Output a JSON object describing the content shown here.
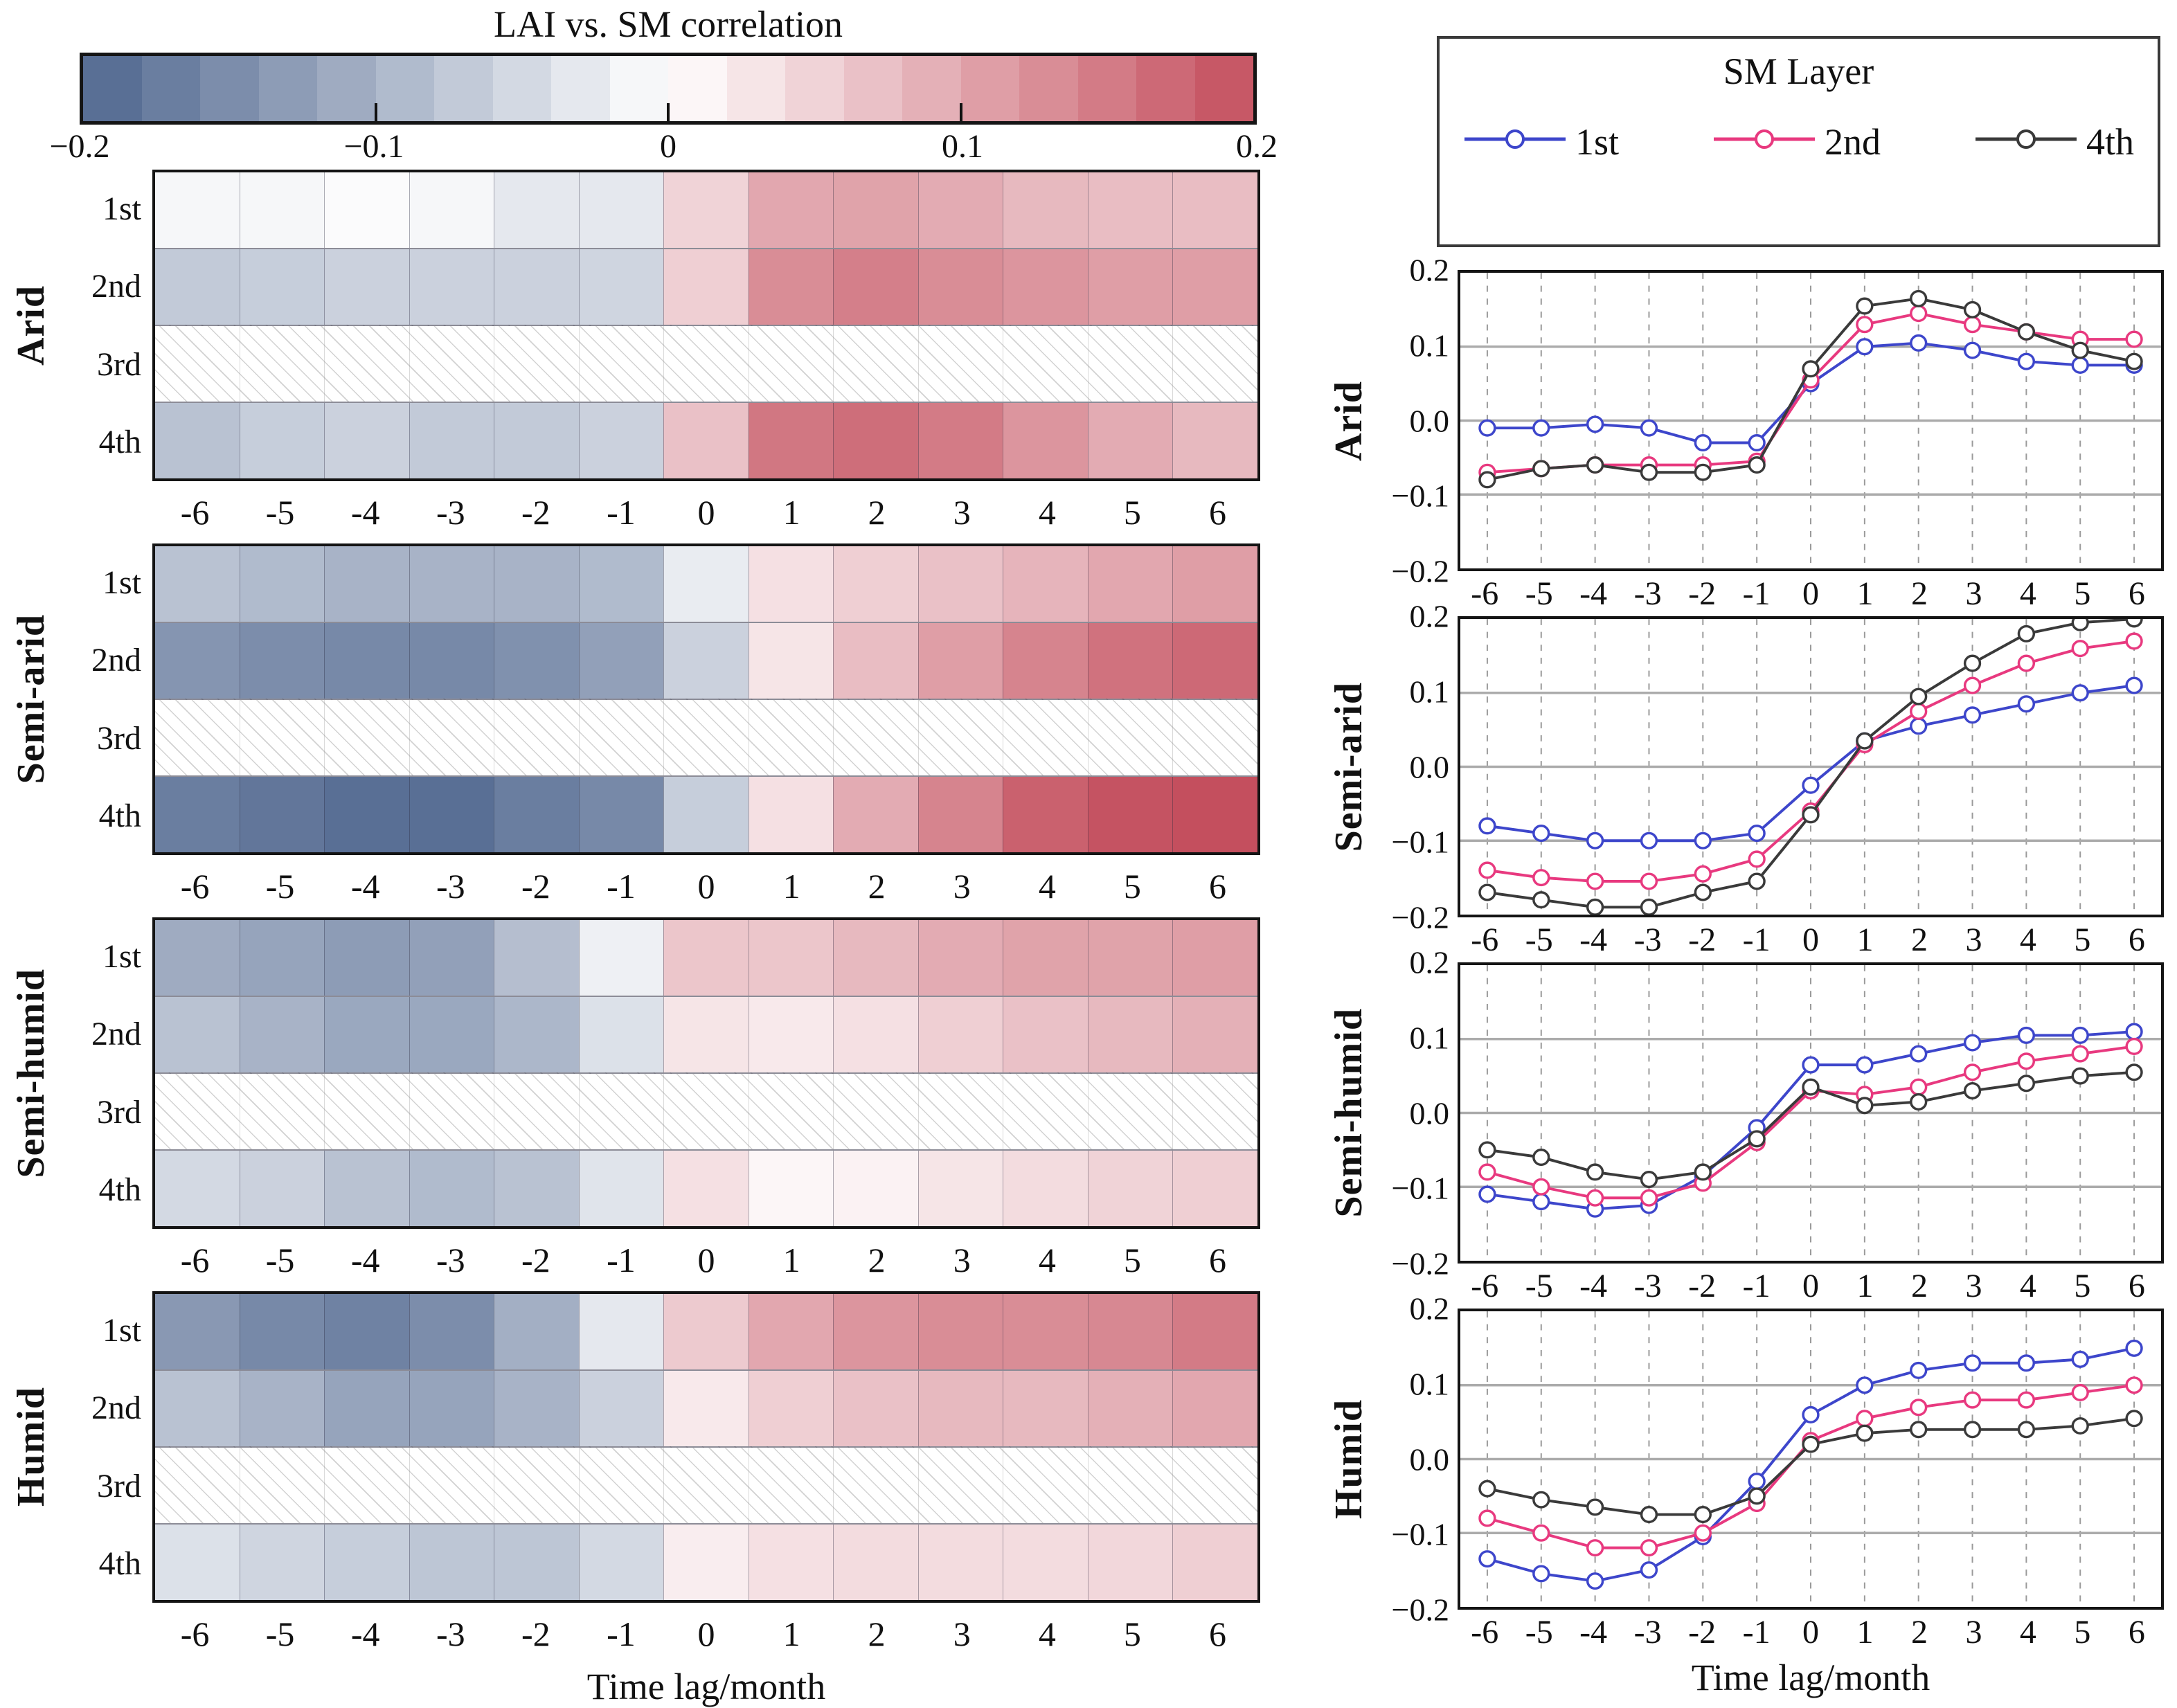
{
  "colorbar": {
    "title": "LAI vs. SM correlation",
    "min": -0.2,
    "max": 0.2,
    "segments": 20,
    "tick_labels": [
      "−0.2",
      "−0.1",
      "0",
      "0.1",
      "0.2"
    ],
    "tick_positions_pct": [
      0,
      25,
      50,
      75,
      100
    ],
    "neg_color": "#50678f",
    "pos_color": "#c44f5e",
    "mid_color": "#ffffff"
  },
  "legend": {
    "title": "SM Layer",
    "entries": [
      {
        "label": "1st",
        "color": "#3d46cb"
      },
      {
        "label": "2nd",
        "color": "#e8397f"
      },
      {
        "label": "4th",
        "color": "#3a3a3a"
      }
    ]
  },
  "axis": {
    "xlabel": "Time lag/month",
    "x_ticks": [
      "-6",
      "-5",
      "-4",
      "-3",
      "-2",
      "-1",
      "0",
      "1",
      "2",
      "3",
      "4",
      "5",
      "6"
    ],
    "y_ticks": [
      "0.2",
      "0.1",
      "0.0",
      "−0.1",
      "−0.2"
    ],
    "ylim": [
      -0.2,
      0.2
    ]
  },
  "heatmap_rows": [
    "1st",
    "2nd",
    "3rd",
    "4th"
  ],
  "no_data_row": "3rd",
  "chart_data": [
    {
      "type": "heatmap+line",
      "zone": "Arid",
      "x": [
        -6,
        -5,
        -4,
        -3,
        -2,
        -1,
        0,
        1,
        2,
        3,
        4,
        5,
        6
      ],
      "ylim": [
        -0.2,
        0.2
      ],
      "series": [
        {
          "name": "1st",
          "color": "#3d46cb",
          "values": [
            -0.01,
            -0.01,
            -0.005,
            -0.01,
            -0.03,
            -0.03,
            0.05,
            0.1,
            0.105,
            0.095,
            0.08,
            0.075,
            0.075
          ]
        },
        {
          "name": "2nd",
          "color": "#e8397f",
          "values": [
            -0.07,
            -0.065,
            -0.06,
            -0.06,
            -0.06,
            -0.055,
            0.055,
            0.13,
            0.145,
            0.13,
            0.12,
            0.11,
            0.11
          ]
        },
        {
          "name": "4th",
          "color": "#3a3a3a",
          "values": [
            -0.08,
            -0.065,
            -0.06,
            -0.07,
            -0.07,
            -0.06,
            0.07,
            0.155,
            0.165,
            0.15,
            0.12,
            0.095,
            0.08
          ]
        }
      ],
      "no_data_row": "3rd"
    },
    {
      "type": "heatmap+line",
      "zone": "Semi-arid",
      "x": [
        -6,
        -5,
        -4,
        -3,
        -2,
        -1,
        0,
        1,
        2,
        3,
        4,
        5,
        6
      ],
      "ylim": [
        -0.2,
        0.2
      ],
      "series": [
        {
          "name": "1st",
          "color": "#3d46cb",
          "values": [
            -0.08,
            -0.09,
            -0.1,
            -0.1,
            -0.1,
            -0.09,
            -0.025,
            0.035,
            0.055,
            0.07,
            0.085,
            0.1,
            0.11
          ]
        },
        {
          "name": "2nd",
          "color": "#e8397f",
          "values": [
            -0.14,
            -0.15,
            -0.155,
            -0.155,
            -0.145,
            -0.125,
            -0.06,
            0.03,
            0.075,
            0.11,
            0.14,
            0.16,
            0.17
          ]
        },
        {
          "name": "4th",
          "color": "#3a3a3a",
          "values": [
            -0.17,
            -0.18,
            -0.19,
            -0.19,
            -0.17,
            -0.155,
            -0.065,
            0.035,
            0.095,
            0.14,
            0.18,
            0.195,
            0.2
          ]
        }
      ],
      "no_data_row": "3rd"
    },
    {
      "type": "heatmap+line",
      "zone": "Semi-humid",
      "x": [
        -6,
        -5,
        -4,
        -3,
        -2,
        -1,
        0,
        1,
        2,
        3,
        4,
        5,
        6
      ],
      "ylim": [
        -0.2,
        0.2
      ],
      "series": [
        {
          "name": "1st",
          "color": "#3d46cb",
          "values": [
            -0.11,
            -0.12,
            -0.13,
            -0.125,
            -0.085,
            -0.02,
            0.065,
            0.065,
            0.08,
            0.095,
            0.105,
            0.105,
            0.11
          ]
        },
        {
          "name": "2nd",
          "color": "#e8397f",
          "values": [
            -0.08,
            -0.1,
            -0.115,
            -0.115,
            -0.095,
            -0.04,
            0.03,
            0.025,
            0.035,
            0.055,
            0.07,
            0.08,
            0.09
          ]
        },
        {
          "name": "4th",
          "color": "#3a3a3a",
          "values": [
            -0.05,
            -0.06,
            -0.08,
            -0.09,
            -0.08,
            -0.035,
            0.035,
            0.01,
            0.015,
            0.03,
            0.04,
            0.05,
            0.055
          ]
        }
      ],
      "no_data_row": "3rd"
    },
    {
      "type": "heatmap+line",
      "zone": "Humid",
      "x": [
        -6,
        -5,
        -4,
        -3,
        -2,
        -1,
        0,
        1,
        2,
        3,
        4,
        5,
        6
      ],
      "ylim": [
        -0.2,
        0.2
      ],
      "series": [
        {
          "name": "1st",
          "color": "#3d46cb",
          "values": [
            -0.135,
            -0.155,
            -0.165,
            -0.15,
            -0.105,
            -0.03,
            0.06,
            0.1,
            0.12,
            0.13,
            0.13,
            0.135,
            0.15
          ]
        },
        {
          "name": "2nd",
          "color": "#e8397f",
          "values": [
            -0.08,
            -0.1,
            -0.12,
            -0.12,
            -0.1,
            -0.06,
            0.025,
            0.055,
            0.07,
            0.08,
            0.08,
            0.09,
            0.1
          ]
        },
        {
          "name": "4th",
          "color": "#3a3a3a",
          "values": [
            -0.04,
            -0.055,
            -0.065,
            -0.075,
            -0.075,
            -0.05,
            0.02,
            0.035,
            0.04,
            0.04,
            0.04,
            0.045,
            0.055
          ]
        }
      ],
      "no_data_row": "3rd"
    }
  ]
}
